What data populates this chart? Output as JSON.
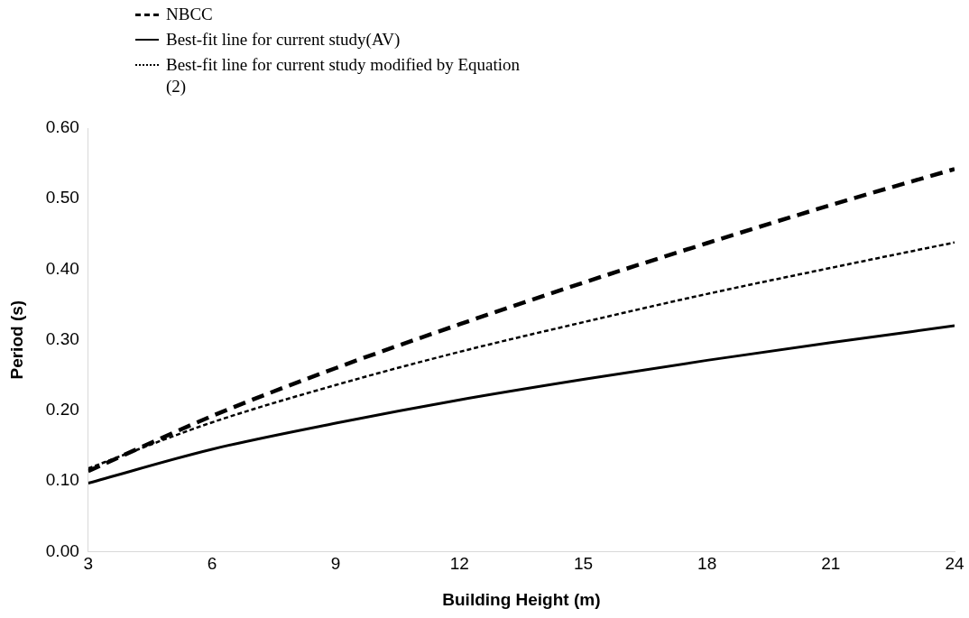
{
  "chart_data": {
    "type": "line",
    "xlabel": "Building Height (m)",
    "ylabel": "Period (s)",
    "x": [
      3,
      6,
      9,
      12,
      15,
      18,
      21,
      24
    ],
    "xlim": [
      3,
      24
    ],
    "xticks": [
      3,
      6,
      9,
      12,
      15,
      18,
      21,
      24
    ],
    "ylim": [
      0,
      0.6
    ],
    "yticks": [
      {
        "value": 0,
        "label": "0.00"
      },
      {
        "value": 0.1,
        "label": "0.10"
      },
      {
        "value": 0.2,
        "label": "0.20"
      },
      {
        "value": 0.3,
        "label": "0.30"
      },
      {
        "value": 0.4,
        "label": "0.40"
      },
      {
        "value": 0.5,
        "label": "0.50"
      },
      {
        "value": 0.6,
        "label": "0.60"
      }
    ],
    "grid": false,
    "legend": "top left",
    "marker": "none",
    "series": [
      {
        "name": "NBCC",
        "color": "#000000",
        "line_style": "dashed",
        "values": [
          0.114,
          0.192,
          0.26,
          0.322,
          0.381,
          0.437,
          0.491,
          0.542
        ]
      },
      {
        "name": "Best-fit line for current study(AV)",
        "color": "#000000",
        "line_style": "solid",
        "values": [
          0.097,
          0.145,
          0.182,
          0.215,
          0.244,
          0.271,
          0.296,
          0.32
        ]
      },
      {
        "name": "Best-fit line for current study modified by Equation (2)",
        "color": "#000000",
        "line_style": "dotted",
        "values": [
          0.118,
          0.183,
          0.236,
          0.283,
          0.325,
          0.365,
          0.402,
          0.438
        ]
      }
    ]
  }
}
